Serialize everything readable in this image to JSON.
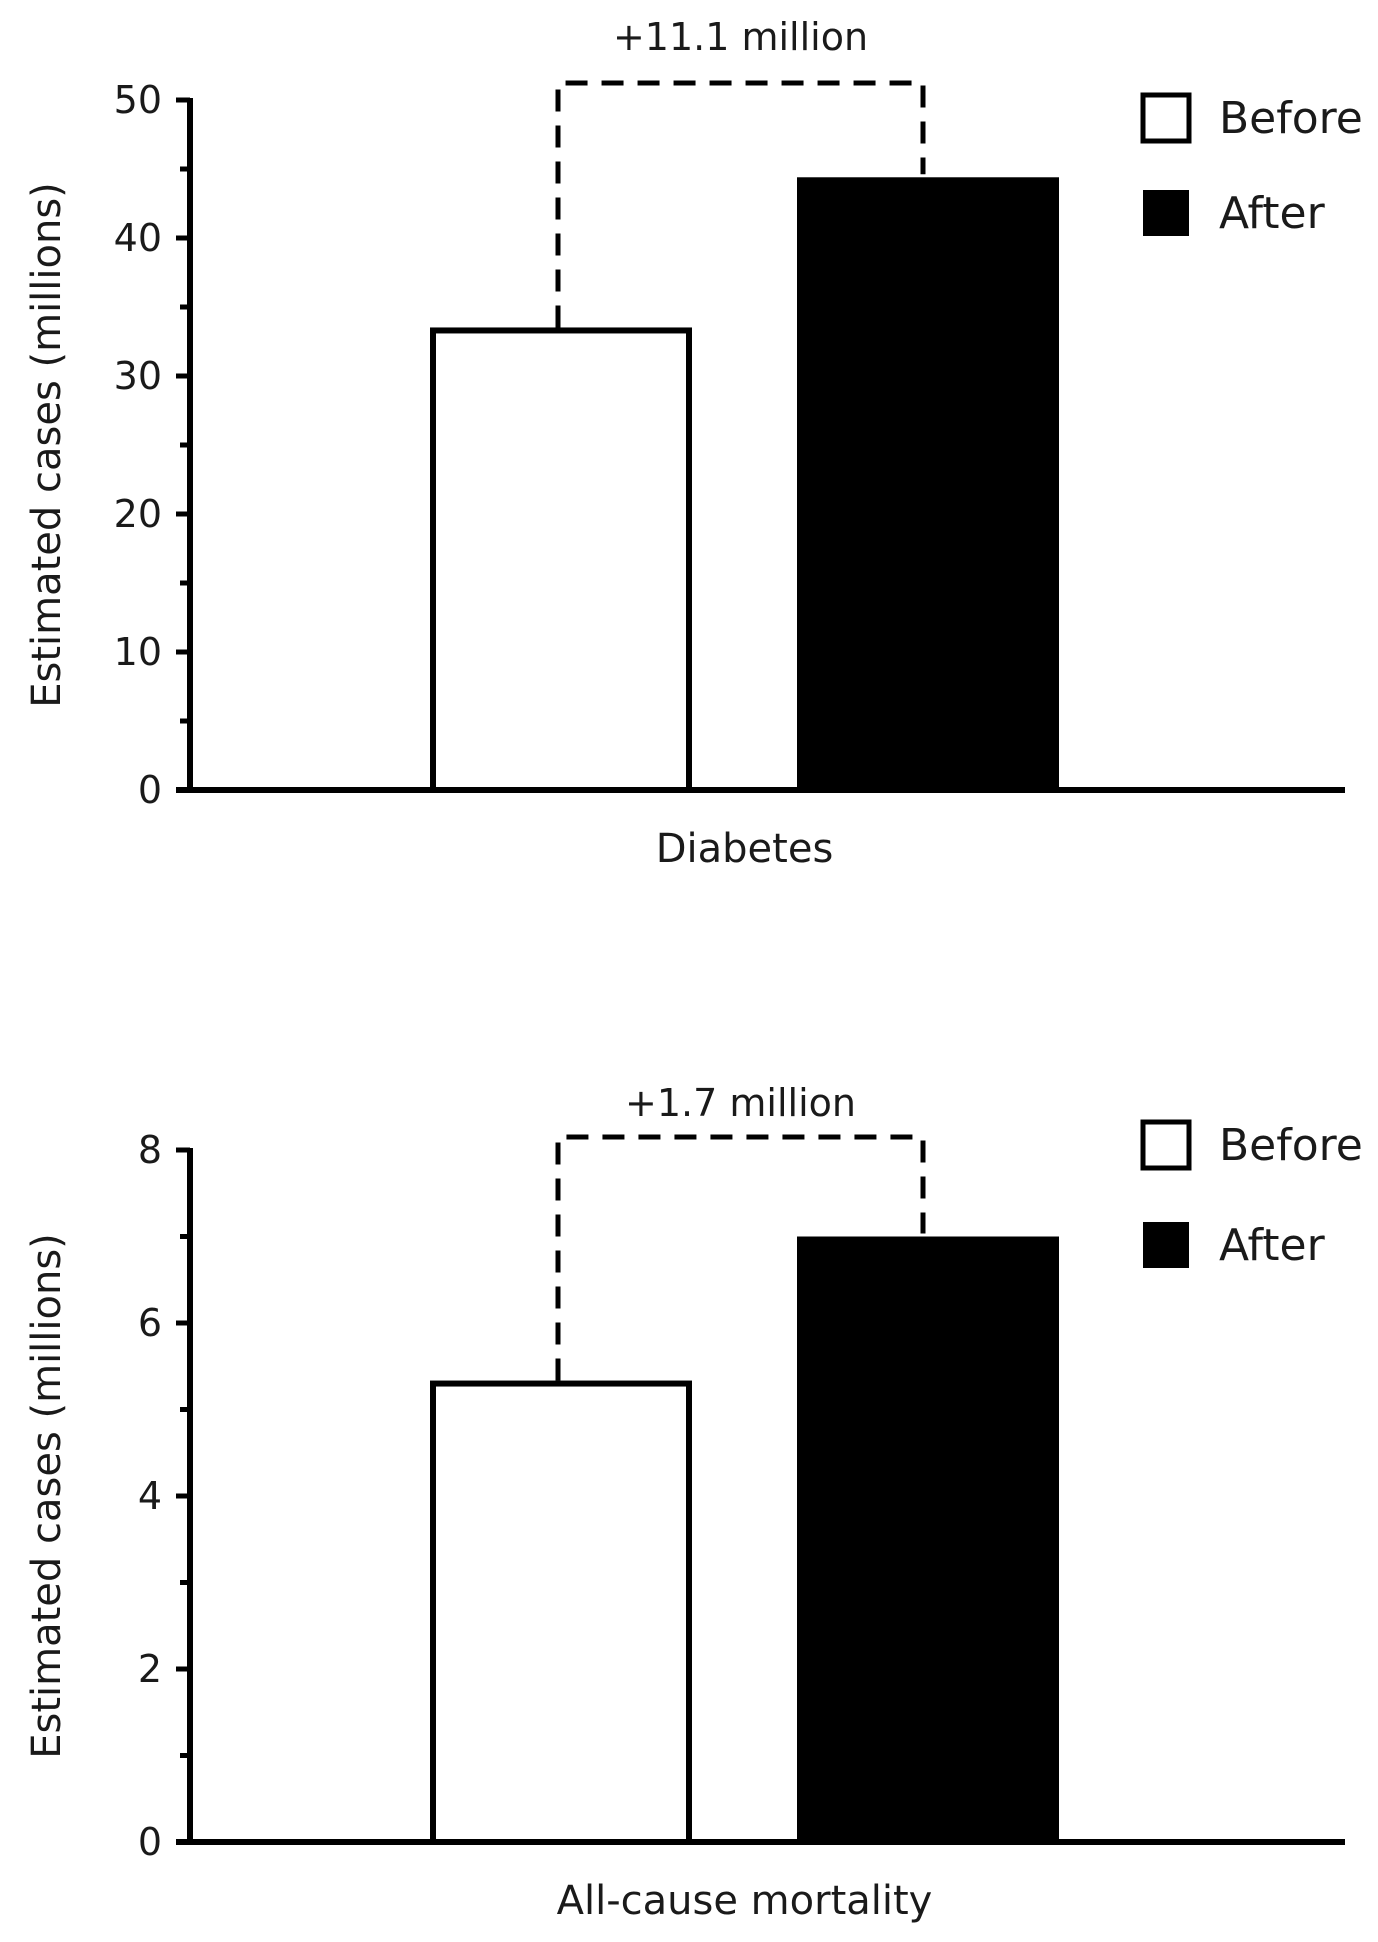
{
  "chart_data": [
    {
      "type": "bar",
      "categories": [
        "Diabetes"
      ],
      "series": [
        {
          "name": "Before",
          "values": [
            33.3
          ],
          "color": "#ffffff",
          "stroke": "#000000"
        },
        {
          "name": "After",
          "values": [
            44.4
          ],
          "color": "#000000",
          "stroke": "#000000"
        }
      ],
      "ylabel": "Estimated cases (millions)",
      "ylim": [
        0,
        50
      ],
      "yticks": [
        "0",
        "10",
        "20",
        "30",
        "40",
        "50"
      ],
      "minor_ticks": true,
      "grid": false,
      "legend_position": "top-right",
      "annotation": "+11.1 million"
    },
    {
      "type": "bar",
      "categories": [
        "All-cause mortality"
      ],
      "series": [
        {
          "name": "Before",
          "values": [
            5.3
          ],
          "color": "#ffffff",
          "stroke": "#000000"
        },
        {
          "name": "After",
          "values": [
            7.0
          ],
          "color": "#000000",
          "stroke": "#000000"
        }
      ],
      "ylabel": "Estimated cases (millions)",
      "ylim": [
        0,
        8
      ],
      "yticks": [
        "0",
        "2",
        "4",
        "6",
        "8"
      ],
      "minor_ticks": true,
      "grid": false,
      "legend_position": "top-right",
      "annotation": "+1.7 million"
    }
  ]
}
